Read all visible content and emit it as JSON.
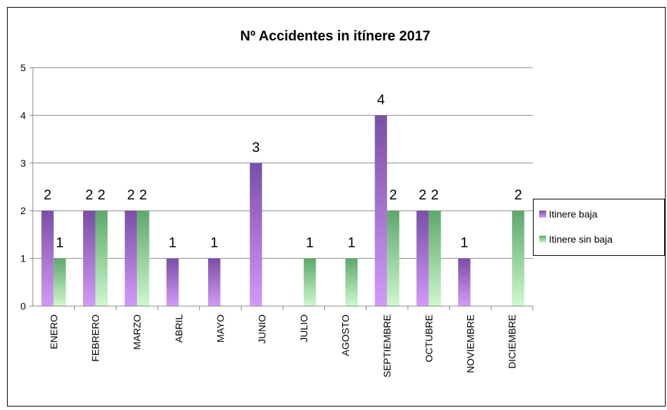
{
  "chart_data": {
    "type": "bar",
    "title": "Nº Accidentes in itínere 2017",
    "categories": [
      "ENERO",
      "FEBRERO",
      "MARZO",
      "ABRIL",
      "MAYO",
      "JUNIO",
      "JULIO",
      "AGOSTO",
      "SEPTIEMBRE",
      "OCTUBRE",
      "NOVIEMBRE",
      "DICIEMBRE"
    ],
    "series": [
      {
        "name": "Itinere baja",
        "color": "#8a5cb8",
        "values": [
          2,
          2,
          2,
          1,
          1,
          3,
          null,
          null,
          4,
          2,
          1,
          null
        ]
      },
      {
        "name": "Itinere sin baja",
        "color": "#7fc98a",
        "values": [
          1,
          2,
          2,
          null,
          null,
          null,
          1,
          1,
          2,
          2,
          null,
          2
        ]
      }
    ],
    "ylim": [
      0,
      5
    ],
    "yticks": [
      0,
      1,
      2,
      3,
      4,
      5
    ],
    "grid": true,
    "legend": "right"
  }
}
